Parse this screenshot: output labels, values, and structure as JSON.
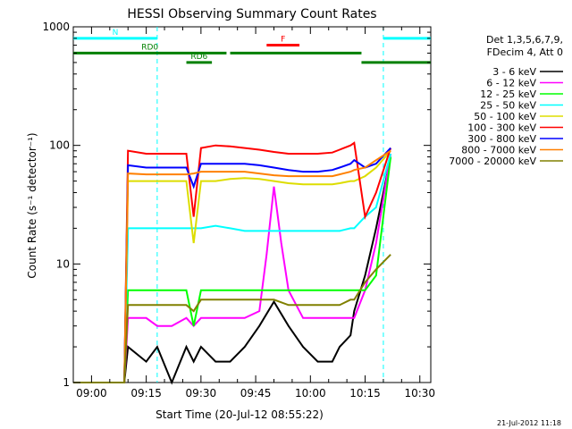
{
  "chart_data": {
    "type": "line",
    "title": "HESSI Observing Summary Count Rates",
    "xlabel": "Start Time (20-Jul-12 08:55:22)",
    "ylabel": "Count Rate (s⁻¹ detector⁻¹)",
    "yscale": "log",
    "ylim": [
      1,
      1000
    ],
    "xlim_minutes_after_0900": [
      -5,
      93
    ],
    "x_ticks": [
      "09:00",
      "09:15",
      "09:30",
      "09:45",
      "10:00",
      "10:15",
      "10:30"
    ],
    "y_ticks": [
      "1",
      "10",
      "100",
      "1000"
    ],
    "legend_header": [
      "Det 1,3,5,6,7,9,",
      "FDecim 4, Att 0"
    ],
    "legend_position": "right",
    "timestamp": "21-Jul-2012 11:18",
    "annotations": {
      "night_label": "N",
      "flare_label": "F",
      "saa_labels": [
        "RD0",
        "RD6"
      ]
    },
    "series": [
      {
        "name": "3 - 6 keV",
        "color": "#000000",
        "x": [
          -5,
          9,
          10,
          15,
          18,
          22,
          26,
          28,
          30,
          34,
          38,
          42,
          46,
          50,
          54,
          58,
          62,
          66,
          68,
          71,
          72,
          75,
          78,
          82
        ],
        "y": [
          1,
          1,
          2,
          1.5,
          2,
          1,
          2,
          1.5,
          2,
          1.5,
          1.5,
          2,
          3,
          4.8,
          3,
          2,
          1.5,
          1.5,
          2,
          2.5,
          4,
          8,
          20,
          80
        ]
      },
      {
        "name": "6 - 12 keV",
        "color": "#ff00ff",
        "x": [
          -5,
          9,
          10,
          15,
          18,
          22,
          26,
          28,
          30,
          34,
          38,
          42,
          46,
          48,
          50,
          52,
          54,
          58,
          62,
          66,
          68,
          71,
          72,
          75,
          78,
          82
        ],
        "y": [
          1,
          1,
          3.5,
          3.5,
          3,
          3,
          3.5,
          3,
          3.5,
          3.5,
          3.5,
          3.5,
          4,
          12,
          45,
          15,
          6,
          3.5,
          3.5,
          3.5,
          3.5,
          3.5,
          3.5,
          6,
          15,
          85
        ]
      },
      {
        "name": "12 - 25 keV",
        "color": "#00ff00",
        "x": [
          -5,
          9,
          10,
          15,
          18,
          22,
          26,
          28,
          30,
          34,
          38,
          42,
          46,
          50,
          54,
          58,
          62,
          66,
          68,
          71,
          72,
          75,
          78,
          82
        ],
        "y": [
          1,
          1,
          6,
          6,
          6,
          6,
          6,
          3,
          6,
          6,
          6,
          6,
          6,
          6,
          6,
          6,
          6,
          6,
          6,
          6,
          6,
          6,
          8,
          80
        ]
      },
      {
        "name": "25 - 50 keV",
        "color": "#00ffff",
        "x": [
          -5,
          9,
          10,
          15,
          18,
          22,
          26,
          28,
          30,
          34,
          38,
          42,
          46,
          50,
          54,
          58,
          62,
          66,
          68,
          71,
          72,
          75,
          78,
          82
        ],
        "y": [
          1,
          1,
          20,
          20,
          20,
          20,
          20,
          20,
          20,
          21,
          20,
          19,
          19,
          19,
          19,
          19,
          19,
          19,
          19,
          20,
          20,
          25,
          30,
          85
        ]
      },
      {
        "name": "50 - 100 keV",
        "color": "#dddd00",
        "x": [
          -5,
          9,
          10,
          15,
          18,
          22,
          26,
          28,
          30,
          34,
          38,
          42,
          46,
          50,
          54,
          58,
          62,
          66,
          68,
          71,
          72,
          75,
          78,
          82
        ],
        "y": [
          1,
          1,
          50,
          50,
          50,
          50,
          50,
          15,
          50,
          50,
          52,
          53,
          52,
          50,
          48,
          47,
          47,
          47,
          48,
          50,
          50,
          55,
          65,
          90
        ]
      },
      {
        "name": "100 - 300 keV",
        "color": "#ff0000",
        "x": [
          -5,
          9,
          10,
          15,
          18,
          22,
          26,
          28,
          30,
          34,
          38,
          42,
          46,
          50,
          54,
          58,
          62,
          66,
          68,
          71,
          72,
          75,
          78,
          82
        ],
        "y": [
          1,
          1,
          90,
          85,
          85,
          85,
          85,
          25,
          95,
          100,
          98,
          95,
          92,
          88,
          85,
          85,
          85,
          87,
          92,
          100,
          105,
          25,
          40,
          95
        ]
      },
      {
        "name": "300 - 800 keV",
        "color": "#0000ff",
        "x": [
          -5,
          9,
          10,
          15,
          18,
          22,
          26,
          28,
          30,
          34,
          38,
          42,
          46,
          50,
          54,
          58,
          62,
          66,
          68,
          71,
          72,
          75,
          78,
          82
        ],
        "y": [
          1,
          1,
          68,
          65,
          65,
          65,
          65,
          45,
          70,
          70,
          70,
          70,
          68,
          65,
          62,
          60,
          60,
          62,
          65,
          70,
          75,
          65,
          70,
          95
        ]
      },
      {
        "name": "800 - 7000 keV",
        "color": "#ff8000",
        "x": [
          -5,
          9,
          10,
          15,
          18,
          22,
          26,
          28,
          30,
          34,
          38,
          42,
          46,
          50,
          54,
          58,
          62,
          66,
          68,
          71,
          72,
          75,
          78,
          82
        ],
        "y": [
          1,
          1,
          58,
          57,
          57,
          57,
          57,
          58,
          60,
          60,
          60,
          60,
          58,
          56,
          55,
          55,
          55,
          55,
          57,
          60,
          62,
          65,
          75,
          90
        ]
      },
      {
        "name": "7000 - 20000 keV",
        "color": "#808000",
        "x": [
          -5,
          9,
          10,
          15,
          18,
          22,
          26,
          28,
          30,
          34,
          38,
          42,
          46,
          50,
          54,
          58,
          62,
          66,
          68,
          71,
          72,
          75,
          78,
          82
        ],
        "y": [
          1,
          1,
          4.5,
          4.5,
          4.5,
          4.5,
          4.5,
          4,
          5,
          5,
          5,
          5,
          5,
          5,
          4.5,
          4.5,
          4.5,
          4.5,
          4.5,
          5,
          5,
          7,
          9,
          12
        ]
      }
    ],
    "bars": [
      {
        "label": "N",
        "color": "#00ffff",
        "segments": [
          [
            -5,
            18
          ],
          [
            80,
            93
          ]
        ],
        "level": 800
      },
      {
        "label": "F",
        "color": "#ff0000",
        "segments": [
          [
            48,
            57
          ]
        ],
        "level": 700
      },
      {
        "label": "RD0",
        "color": "#008000",
        "segments": [
          [
            -5,
            37
          ],
          [
            38,
            74
          ]
        ],
        "level": 600
      },
      {
        "label": "RD6",
        "color": "#008000",
        "segments": [
          [
            26,
            33
          ],
          [
            74,
            93
          ]
        ],
        "level": 500
      }
    ]
  }
}
